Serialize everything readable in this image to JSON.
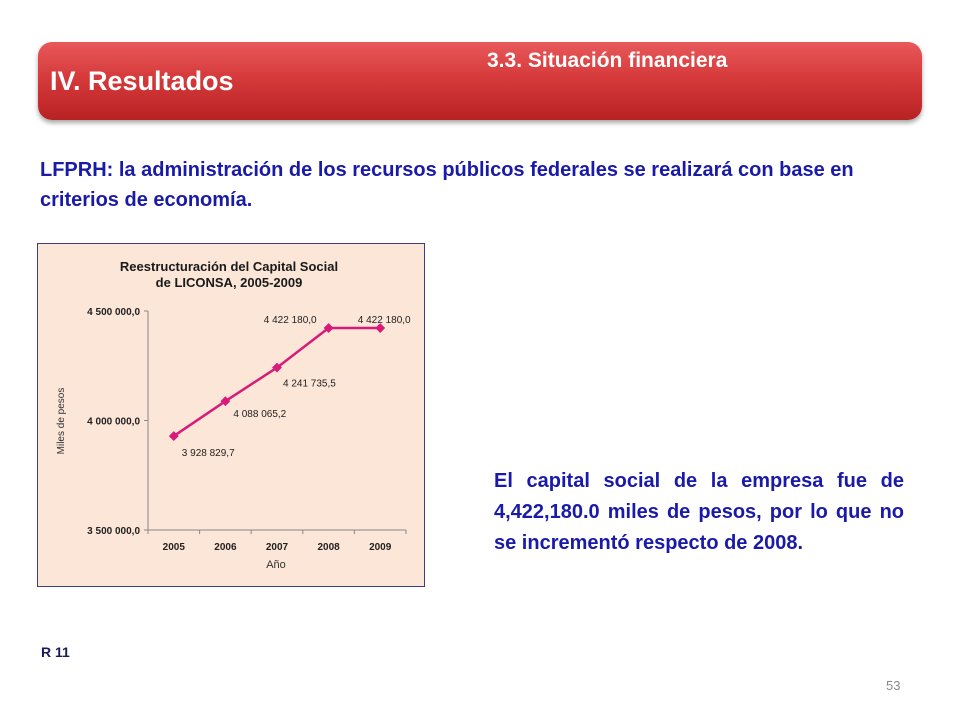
{
  "header": {
    "title": "IV. Resultados",
    "subtitle": "3.3.   Situación financiera"
  },
  "intro_text": "LFPRH: la administración de los recursos públicos federales se realizará con base en criterios de economía.",
  "chart_data": {
    "type": "line",
    "title_line1": "Reestructuración del Capital Social",
    "title_line2": "de LICONSA, 2005-2009",
    "xlabel": "Año",
    "ylabel": "Miles de pesos",
    "categories": [
      "2005",
      "2006",
      "2007",
      "2008",
      "2009"
    ],
    "values": [
      3928829.7,
      4088065.2,
      4241735.5,
      4422180.0,
      4422180.0
    ],
    "data_labels": [
      "3 928 829,7",
      "4 088 065,2",
      "4 241 735,5",
      "4 422 180,0",
      "4 422 180,0"
    ],
    "ylim": [
      3500000,
      4500000
    ],
    "yticks": [
      3500000,
      4000000,
      4500000
    ],
    "ytick_labels": [
      "3 500 000,0",
      "4 000 000,0",
      "4 500 000,0"
    ],
    "grid": false,
    "line_color": "#d81b7a"
  },
  "summary_text": "El capital social de la empresa fue de 4,422,180.0 miles de pesos, por lo que no se incrementó respecto de 2008.",
  "reference": "R 11",
  "page_number": "53"
}
